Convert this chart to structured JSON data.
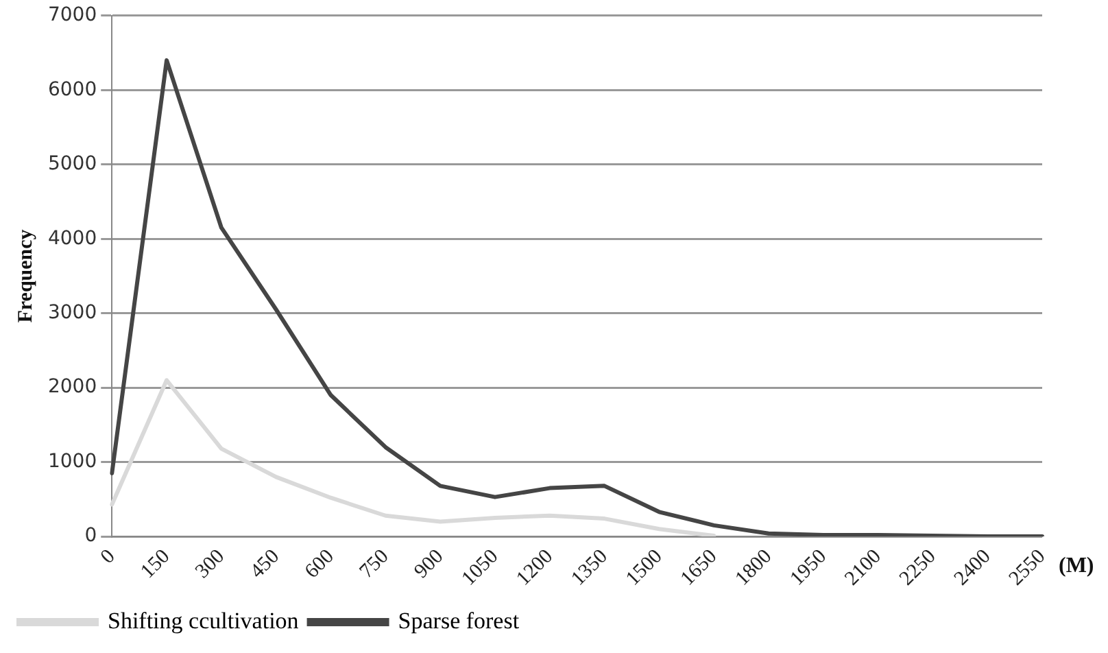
{
  "chart_data": {
    "type": "line",
    "ylabel": "Frequency",
    "xlabel": "(M)",
    "categories": [
      "0",
      "150",
      "300",
      "450",
      "600",
      "750",
      "900",
      "1050",
      "1200",
      "1350",
      "1500",
      "1650",
      "1800",
      "1950",
      "2100",
      "2250",
      "2400",
      "2550"
    ],
    "series": [
      {
        "name": "Shifting ccultivation",
        "color": "#d9d9d9",
        "values": [
          430,
          2100,
          1180,
          800,
          520,
          280,
          200,
          250,
          280,
          240,
          100,
          10,
          null,
          null,
          null,
          null,
          null,
          null
        ]
      },
      {
        "name": "Sparse forest",
        "color": "#454545",
        "values": [
          850,
          6400,
          4150,
          3050,
          1900,
          1200,
          680,
          530,
          650,
          680,
          330,
          150,
          40,
          20,
          20,
          10,
          0,
          0
        ]
      }
    ],
    "ylim": [
      0,
      7000
    ],
    "yticks": [
      0,
      1000,
      2000,
      3000,
      4000,
      5000,
      6000,
      7000
    ],
    "grid": "y",
    "legend": "bottom",
    "marker": "none",
    "line_style": "solid"
  }
}
